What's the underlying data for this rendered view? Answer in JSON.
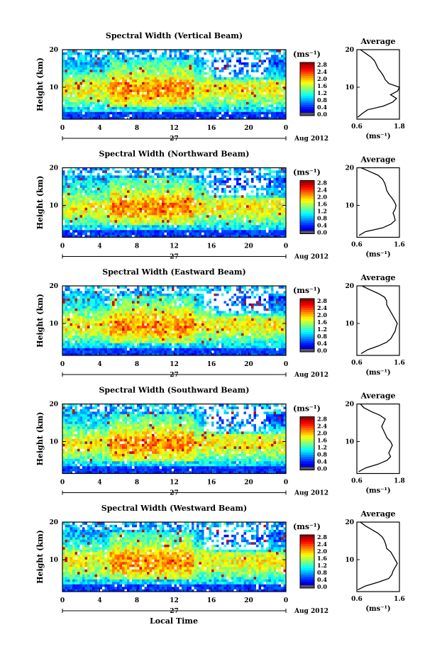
{
  "figure": {
    "xlabel_bottom": "Local Time",
    "colorbar_unit": "(ms⁻¹)",
    "avg_title": "Average",
    "avg_xlabel": "(ms⁻¹)",
    "date_day": "27",
    "date_label": "Aug 2012",
    "ylabel": "Height (km)"
  },
  "chart_data": [
    {
      "type": "heatmap",
      "title": "Spectral Width (Vertical Beam)",
      "xlabel": "",
      "ylabel": "Height (km)",
      "x_ticks": [
        "0",
        "4",
        "8",
        "12",
        "16",
        "20",
        "0"
      ],
      "xlim": [
        0,
        24
      ],
      "y_ticks": [
        "10",
        "20"
      ],
      "ylim": [
        1.5,
        20
      ],
      "colorbar": {
        "unit": "(ms⁻¹)",
        "ticks": [
          "0.0",
          "0.4",
          "0.8",
          "1.2",
          "1.6",
          "2.0",
          "2.4",
          "2.8"
        ],
        "range": [
          0,
          3.0
        ]
      },
      "average_profile": {
        "title": "Average",
        "xlabel": "(ms⁻¹)",
        "x_ticks": [
          "0.6",
          "1.8"
        ],
        "xlim": [
          0.6,
          1.8
        ],
        "heights": [
          2,
          3,
          4,
          5,
          6,
          7,
          8,
          9,
          10,
          11,
          12,
          13,
          14,
          15,
          16,
          17,
          18,
          19,
          20
        ],
        "values": [
          0.62,
          0.75,
          0.9,
          1.35,
          1.6,
          1.72,
          1.55,
          1.75,
          1.8,
          1.5,
          1.4,
          1.35,
          1.28,
          1.2,
          1.15,
          1.1,
          1.0,
          0.85,
          0.7
        ]
      }
    },
    {
      "type": "heatmap",
      "title": "Spectral Width (Northward Beam)",
      "xlabel": "",
      "ylabel": "Height (km)",
      "x_ticks": [
        "0",
        "4",
        "8",
        "12",
        "16",
        "20",
        "0"
      ],
      "xlim": [
        0,
        24
      ],
      "y_ticks": [
        "10",
        "20"
      ],
      "ylim": [
        1.5,
        20
      ],
      "colorbar": {
        "unit": "(ms⁻¹)",
        "ticks": [
          "0.0",
          "0.4",
          "0.8",
          "1.2",
          "1.6",
          "2.0",
          "2.4",
          "2.8"
        ],
        "range": [
          0,
          3.0
        ]
      },
      "average_profile": {
        "title": "Average",
        "xlabel": "(ms⁻¹)",
        "x_ticks": [
          "0.6",
          "1.6"
        ],
        "xlim": [
          0.6,
          1.6
        ],
        "heights": [
          2,
          3,
          4,
          5,
          6,
          7,
          8,
          9,
          10,
          11,
          12,
          13,
          14,
          15,
          16,
          17,
          18,
          19,
          20
        ],
        "values": [
          0.65,
          0.8,
          1.2,
          1.4,
          1.5,
          1.48,
          1.45,
          1.5,
          1.52,
          1.48,
          1.42,
          1.35,
          1.3,
          1.28,
          1.25,
          1.2,
          1.1,
          0.9,
          0.7
        ]
      }
    },
    {
      "type": "heatmap",
      "title": "Spectral Width (Eastward Beam)",
      "xlabel": "",
      "ylabel": "Height (km)",
      "x_ticks": [
        "0",
        "4",
        "8",
        "12",
        "16",
        "20",
        "0"
      ],
      "xlim": [
        0,
        24
      ],
      "y_ticks": [
        "10",
        "20"
      ],
      "ylim": [
        1.5,
        20
      ],
      "colorbar": {
        "unit": "(ms⁻¹)",
        "ticks": [
          "0.0",
          "0.4",
          "0.8",
          "1.2",
          "1.6",
          "2.0",
          "2.4",
          "2.8"
        ],
        "range": [
          0,
          3.0
        ]
      },
      "average_profile": {
        "title": "Average",
        "xlabel": "(ms⁻¹)",
        "x_ticks": [
          "0.6",
          "1.6"
        ],
        "xlim": [
          0.6,
          1.6
        ],
        "heights": [
          2,
          3,
          4,
          5,
          6,
          7,
          8,
          9,
          10,
          11,
          12,
          13,
          14,
          15,
          16,
          17,
          18,
          19,
          20
        ],
        "values": [
          0.7,
          0.85,
          1.1,
          1.3,
          1.4,
          1.45,
          1.5,
          1.52,
          1.55,
          1.5,
          1.45,
          1.4,
          1.35,
          1.3,
          1.3,
          1.25,
          1.1,
          0.9,
          0.72
        ]
      }
    },
    {
      "type": "heatmap",
      "title": "Spectral Width (Southward Beam)",
      "xlabel": "",
      "ylabel": "Height (km)",
      "x_ticks": [
        "0",
        "4",
        "8",
        "12",
        "16",
        "20",
        "0"
      ],
      "xlim": [
        0,
        24
      ],
      "y_ticks": [
        "10",
        "20"
      ],
      "ylim": [
        1.5,
        20
      ],
      "colorbar": {
        "unit": "(ms⁻¹)",
        "ticks": [
          "0.0",
          "0.4",
          "0.8",
          "1.2",
          "1.6",
          "2.0",
          "2.4",
          "2.8"
        ],
        "range": [
          0,
          3.0
        ]
      },
      "average_profile": {
        "title": "Average",
        "xlabel": "(ms⁻¹)",
        "x_ticks": [
          "0.6",
          "1.8"
        ],
        "xlim": [
          0.6,
          1.8
        ],
        "heights": [
          2,
          3,
          4,
          5,
          6,
          7,
          8,
          9,
          10,
          11,
          12,
          13,
          14,
          15,
          16,
          17,
          18,
          19,
          20
        ],
        "values": [
          0.65,
          0.85,
          1.2,
          1.45,
          1.55,
          1.5,
          1.55,
          1.6,
          1.55,
          1.45,
          1.4,
          1.35,
          1.3,
          1.35,
          1.4,
          1.25,
          1.0,
          0.8,
          0.7
        ]
      }
    },
    {
      "type": "heatmap",
      "title": "Spectral Width (Westward Beam)",
      "xlabel": "Local Time",
      "ylabel": "Height (km)",
      "x_ticks": [
        "0",
        "4",
        "8",
        "12",
        "16",
        "20",
        "0"
      ],
      "xlim": [
        0,
        24
      ],
      "y_ticks": [
        "10",
        "20"
      ],
      "ylim": [
        1.5,
        20
      ],
      "colorbar": {
        "unit": "(ms⁻¹)",
        "ticks": [
          "0.0",
          "0.4",
          "0.8",
          "1.2",
          "1.6",
          "2.0",
          "2.4",
          "2.8"
        ],
        "range": [
          0,
          3.0
        ]
      },
      "average_profile": {
        "title": "Average",
        "xlabel": "(ms⁻¹)",
        "x_ticks": [
          "0.6",
          "1.6"
        ],
        "xlim": [
          0.6,
          1.6
        ],
        "heights": [
          2,
          3,
          4,
          5,
          6,
          7,
          8,
          9,
          10,
          11,
          12,
          13,
          14,
          15,
          16,
          17,
          18,
          19,
          20
        ],
        "values": [
          0.62,
          0.8,
          1.1,
          1.35,
          1.42,
          1.45,
          1.5,
          1.55,
          1.5,
          1.45,
          1.4,
          1.3,
          1.28,
          1.25,
          1.2,
          1.1,
          0.95,
          0.8,
          0.68
        ]
      }
    }
  ]
}
